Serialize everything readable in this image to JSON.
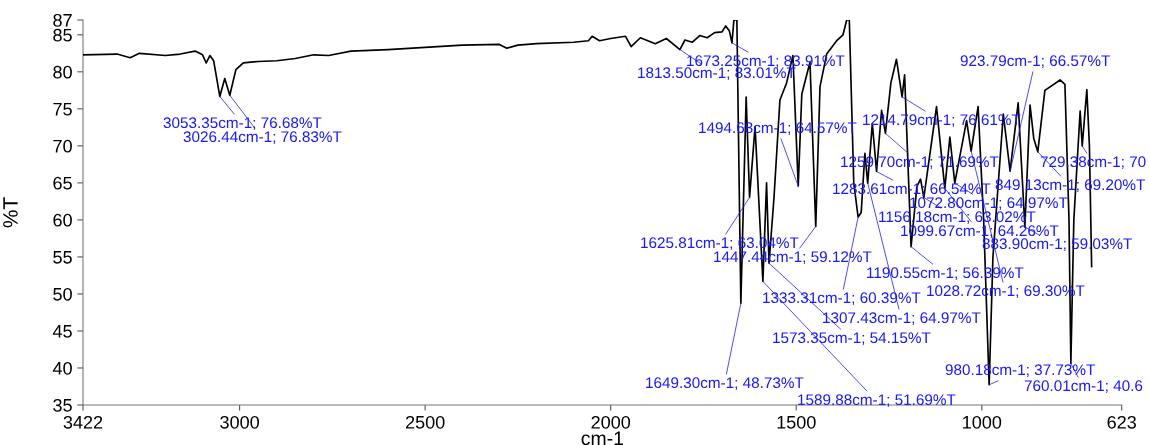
{
  "chart_data": {
    "type": "line",
    "xlabel": "cm-1",
    "ylabel": "%T",
    "color": "#000000",
    "xlim": [
      3422,
      623
    ],
    "xticks": [
      3422,
      3000,
      2500,
      2000,
      1500,
      1000,
      623
    ],
    "ylim": [
      35,
      87
    ],
    "yticks": [
      35,
      40,
      45,
      50,
      55,
      60,
      65,
      70,
      75,
      80,
      85,
      87
    ],
    "x": [
      3422,
      3330,
      3295,
      3270,
      3200,
      3160,
      3120,
      3100,
      3090,
      3080,
      3070,
      3053.35,
      3040,
      3026.44,
      3010,
      2990,
      2950,
      2900,
      2850,
      2800,
      2760,
      2700,
      2600,
      2500,
      2400,
      2300,
      2280,
      2250,
      2200,
      2100,
      2060,
      2050,
      2030,
      2000,
      1960,
      1945,
      1920,
      1880,
      1850,
      1813.5,
      1800,
      1780,
      1760,
      1740,
      1720,
      1700,
      1690,
      1680,
      1673.25,
      1668,
      1660,
      1649.3,
      1635,
      1625.81,
      1611,
      1589.88,
      1580,
      1573.35,
      1560,
      1544,
      1526,
      1509,
      1494.68,
      1485,
      1463,
      1447.44,
      1436,
      1418,
      1391,
      1374,
      1364,
      1357,
      1345,
      1333.31,
      1325,
      1315,
      1307.43,
      1295,
      1283.61,
      1270,
      1259.7,
      1245,
      1230,
      1214.79,
      1208,
      1190.55,
      1175,
      1165,
      1156.18,
      1122,
      1099.67,
      1086,
      1072.8,
      1041,
      1028.72,
      1010,
      995,
      980.18,
      970,
      942,
      923.79,
      902,
      883.9,
      870,
      860,
      849.13,
      830,
      789,
      776,
      765,
      760.01,
      752,
      735,
      729.38,
      717,
      710,
      704
    ],
    "values": [
      82.3,
      82.4,
      81.9,
      82.5,
      82.2,
      82.4,
      82.8,
      82.3,
      81.2,
      82.2,
      81.5,
      76.68,
      79.1,
      76.83,
      80.3,
      81.2,
      81.4,
      81.5,
      81.8,
      82.3,
      82.2,
      82.8,
      83.0,
      83.3,
      83.6,
      83.7,
      83.2,
      83.6,
      83.8,
      84.0,
      84.2,
      84.8,
      84.2,
      84.5,
      84.8,
      83.4,
      84.6,
      83.8,
      84.5,
      83.01,
      84.3,
      84.0,
      84.9,
      84.6,
      85.3,
      85.4,
      86.2,
      85.5,
      83.91,
      87,
      87,
      48.73,
      76.6,
      63.04,
      72.6,
      51.69,
      65,
      54.15,
      63,
      76.2,
      78.5,
      82.2,
      64.57,
      77,
      81.3,
      59.12,
      78,
      82.4,
      84.2,
      85,
      87,
      87,
      65,
      60.39,
      61,
      69,
      64.97,
      73,
      66.54,
      74.8,
      71.69,
      78.5,
      81.7,
      76.61,
      79.6,
      56.39,
      64.5,
      65.5,
      63.02,
      75.3,
      64.26,
      71.2,
      64.97,
      73.4,
      69.3,
      75.3,
      60,
      37.73,
      55,
      74.3,
      66.57,
      75.8,
      59.03,
      75.5,
      71,
      69.2,
      77.5,
      78.9,
      78.3,
      60,
      40.6,
      60,
      74.7,
      70,
      77.6,
      70,
      53.7
    ],
    "annotations": [
      {
        "text": "3053.35cm-1; 76.68%T",
        "x": 3053.35,
        "y": 76.68
      },
      {
        "text": "3026.44cm-1; 76.83%T",
        "x": 3026.44,
        "y": 76.83
      },
      {
        "text": "1813.50cm-1; 83.01%T",
        "x": 1813.5,
        "y": 83.01
      },
      {
        "text": "1673.25cm-1; 83.91%T",
        "x": 1673.25,
        "y": 83.91
      },
      {
        "text": "1494.68cm-1; 64.57%T",
        "x": 1494.68,
        "y": 64.57
      },
      {
        "text": "1214.79cm-1; 76.61%T",
        "x": 1214.79,
        "y": 76.61
      },
      {
        "text": "923.79cm-1; 66.57%T",
        "x": 923.79,
        "y": 66.57
      },
      {
        "text": "1259.70cm-1; 71.69%T",
        "x": 1259.7,
        "y": 71.69
      },
      {
        "text": "729.38cm-1; 70",
        "x": 729.38,
        "y": 70
      },
      {
        "text": "849.13cm-1; 69.20%T",
        "x": 849.13,
        "y": 69.2
      },
      {
        "text": "1283.61cm-1; 66.54%T",
        "x": 1283.61,
        "y": 66.54
      },
      {
        "text": "1072.80cm-1; 64.97%T",
        "x": 1072.8,
        "y": 64.97
      },
      {
        "text": "1156.18cm-1; 63.02%T",
        "x": 1156.18,
        "y": 63.02
      },
      {
        "text": "1099.67cm-1; 64.26%T",
        "x": 1099.67,
        "y": 64.26
      },
      {
        "text": "1625.81cm-1; 63.04%T",
        "x": 1625.81,
        "y": 63.04
      },
      {
        "text": "1447.44cm-1; 59.12%T",
        "x": 1447.44,
        "y": 59.12
      },
      {
        "text": "883.90cm-1; 59.03%T",
        "x": 883.9,
        "y": 59.03
      },
      {
        "text": "1190.55cm-1; 56.39%T",
        "x": 1190.55,
        "y": 56.39
      },
      {
        "text": "1028.72cm-1; 69.30%T",
        "x": 1028.72,
        "y": 69.3
      },
      {
        "text": "1333.31cm-1; 60.39%T",
        "x": 1333.31,
        "y": 60.39
      },
      {
        "text": "1307.43cm-1; 64.97%T",
        "x": 1307.43,
        "y": 64.97
      },
      {
        "text": "1573.35cm-1; 54.15%T",
        "x": 1573.35,
        "y": 54.15
      },
      {
        "text": "980.18cm-1; 37.73%T",
        "x": 980.18,
        "y": 37.73
      },
      {
        "text": "760.01cm-1; 40.6",
        "x": 760.01,
        "y": 40.6
      },
      {
        "text": "1649.30cm-1; 48.73%T",
        "x": 1649.3,
        "y": 48.73
      },
      {
        "text": "1589.88cm-1; 51.69%T",
        "x": 1589.88,
        "y": 51.69
      }
    ]
  }
}
